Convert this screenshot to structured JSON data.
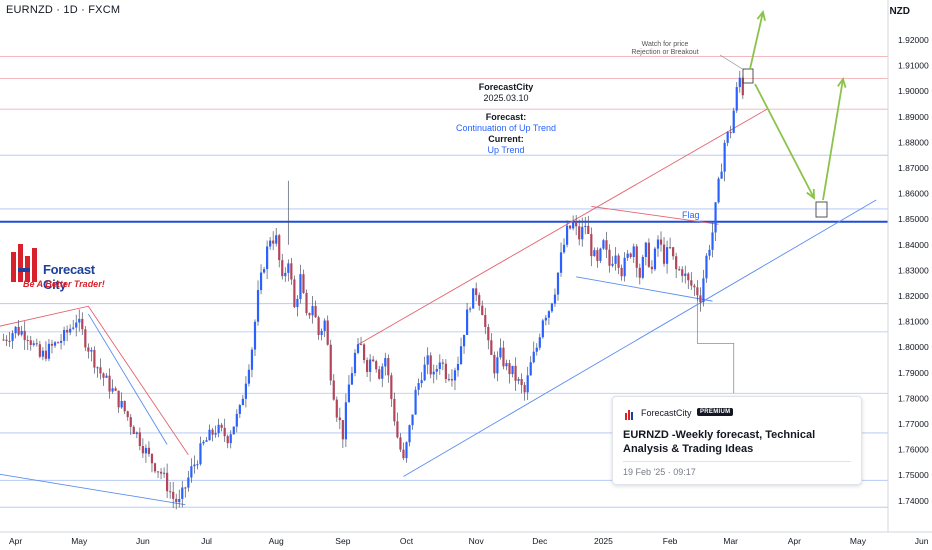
{
  "header": {
    "symbol": "EURNZD · 1D · FXCM",
    "currency": "NZD"
  },
  "annotations": {
    "watch_line1": "Watch for price",
    "watch_line2": "Rejection or Breakout",
    "fc_name": "ForecastCity",
    "fc_date": "2025.03.10",
    "forecast_label": "Forecast:",
    "forecast_value": "Continuation of Up Trend",
    "current_label": "Current:",
    "current_value": "Up Trend",
    "flag": "Flag"
  },
  "logo": {
    "name": "Forecast City",
    "tagline": "Be A Better Trader!"
  },
  "card": {
    "author": "ForecastCity",
    "badge": "PREMIUM",
    "title": "EURNZD -Weekly forecast, Technical Analysis & Trading Ideas",
    "date": "19 Feb '25 · 09:17"
  },
  "colors": {
    "up": "#2962ff",
    "down": "#b2455a",
    "support": "#1e4fd8",
    "trend_red": "#e5646f",
    "trend_blue": "#5b8def",
    "arrow": "#8bc34a"
  },
  "chart_data": {
    "type": "candlestick",
    "y_axis": {
      "min": 1.735,
      "max": 1.93,
      "ticks": [
        "1.92000",
        "1.91000",
        "1.90000",
        "1.89000",
        "1.88000",
        "1.87000",
        "1.86000",
        "1.85000",
        "1.84000",
        "1.83000",
        "1.82000",
        "1.81000",
        "1.80000",
        "1.79000",
        "1.78000",
        "1.77000",
        "1.76000",
        "1.75000",
        "1.74000"
      ]
    },
    "x_axis": {
      "labels": [
        {
          "text": "Apr",
          "i": 4
        },
        {
          "text": "May",
          "i": 25
        },
        {
          "text": "Jun",
          "i": 46
        },
        {
          "text": "Jul",
          "i": 67
        },
        {
          "text": "Aug",
          "i": 90
        },
        {
          "text": "Sep",
          "i": 112
        },
        {
          "text": "Oct",
          "i": 133
        },
        {
          "text": "Nov",
          "i": 156
        },
        {
          "text": "Dec",
          "i": 177
        },
        {
          "text": "2025",
          "i": 198
        },
        {
          "text": "Feb",
          "i": 220
        },
        {
          "text": "Mar",
          "i": 240
        },
        {
          "text": "Apr",
          "i": 261
        },
        {
          "text": "May",
          "i": 282
        },
        {
          "text": "Jun",
          "i": 303
        }
      ]
    },
    "candles_total": 245,
    "close_anchors": [
      [
        0,
        1.803
      ],
      [
        4,
        1.807
      ],
      [
        8,
        1.805
      ],
      [
        12,
        1.796
      ],
      [
        16,
        1.8
      ],
      [
        20,
        1.804
      ],
      [
        24,
        1.811
      ],
      [
        28,
        1.8
      ],
      [
        32,
        1.79
      ],
      [
        36,
        1.783
      ],
      [
        40,
        1.775
      ],
      [
        44,
        1.766
      ],
      [
        48,
        1.757
      ],
      [
        52,
        1.751
      ],
      [
        56,
        1.741
      ],
      [
        58,
        1.739
      ],
      [
        62,
        1.752
      ],
      [
        66,
        1.762
      ],
      [
        70,
        1.768
      ],
      [
        74,
        1.765
      ],
      [
        78,
        1.775
      ],
      [
        80,
        1.788
      ],
      [
        82,
        1.8
      ],
      [
        84,
        1.82
      ],
      [
        86,
        1.833
      ],
      [
        88,
        1.843
      ],
      [
        90,
        1.842
      ],
      [
        92,
        1.825
      ],
      [
        94,
        1.835
      ],
      [
        96,
        1.815
      ],
      [
        98,
        1.827
      ],
      [
        100,
        1.811
      ],
      [
        102,
        1.817
      ],
      [
        104,
        1.805
      ],
      [
        106,
        1.81
      ],
      [
        108,
        1.79
      ],
      [
        110,
        1.775
      ],
      [
        112,
        1.766
      ],
      [
        114,
        1.785
      ],
      [
        116,
        1.797
      ],
      [
        118,
        1.8
      ],
      [
        120,
        1.793
      ],
      [
        122,
        1.797
      ],
      [
        124,
        1.79
      ],
      [
        126,
        1.796
      ],
      [
        128,
        1.78
      ],
      [
        130,
        1.765
      ],
      [
        132,
        1.755
      ],
      [
        134,
        1.768
      ],
      [
        136,
        1.782
      ],
      [
        138,
        1.79
      ],
      [
        140,
        1.794
      ],
      [
        142,
        1.788
      ],
      [
        144,
        1.796
      ],
      [
        146,
        1.79
      ],
      [
        148,
        1.79
      ],
      [
        150,
        1.795
      ],
      [
        152,
        1.807
      ],
      [
        154,
        1.818
      ],
      [
        156,
        1.822
      ],
      [
        158,
        1.815
      ],
      [
        160,
        1.8
      ],
      [
        162,
        1.792
      ],
      [
        164,
        1.797
      ],
      [
        166,
        1.792
      ],
      [
        168,
        1.79
      ],
      [
        170,
        1.786
      ],
      [
        172,
        1.782
      ],
      [
        174,
        1.793
      ],
      [
        176,
        1.8
      ],
      [
        178,
        1.812
      ],
      [
        180,
        1.815
      ],
      [
        182,
        1.823
      ],
      [
        184,
        1.835
      ],
      [
        186,
        1.845
      ],
      [
        188,
        1.848
      ],
      [
        190,
        1.843
      ],
      [
        192,
        1.848
      ],
      [
        194,
        1.838
      ],
      [
        196,
        1.832
      ],
      [
        198,
        1.84
      ],
      [
        200,
        1.832
      ],
      [
        202,
        1.838
      ],
      [
        204,
        1.83
      ],
      [
        206,
        1.835
      ],
      [
        208,
        1.84
      ],
      [
        210,
        1.828
      ],
      [
        212,
        1.838
      ],
      [
        214,
        1.83
      ],
      [
        216,
        1.842
      ],
      [
        218,
        1.835
      ],
      [
        220,
        1.838
      ],
      [
        222,
        1.83
      ],
      [
        224,
        1.83
      ],
      [
        226,
        1.825
      ],
      [
        228,
        1.823
      ],
      [
        230,
        1.82
      ],
      [
        232,
        1.835
      ],
      [
        234,
        1.845
      ],
      [
        236,
        1.863
      ],
      [
        238,
        1.88
      ],
      [
        240,
        1.885
      ],
      [
        242,
        1.9
      ],
      [
        243,
        1.905
      ],
      [
        244,
        1.9
      ]
    ],
    "horizontal_levels": [
      {
        "price": 1.9135,
        "style": "thin-red"
      },
      {
        "price": 1.905,
        "style": "thin-red"
      },
      {
        "price": 1.893,
        "style": "thin-red"
      },
      {
        "price": 1.875,
        "style": "thin-blue"
      },
      {
        "price": 1.854,
        "style": "thin-blue"
      },
      {
        "price": 1.849,
        "style": "support"
      },
      {
        "price": 1.817,
        "style": "thin-blue"
      },
      {
        "price": 1.806,
        "style": "thin-blue"
      },
      {
        "price": 1.782,
        "style": "thin-blue"
      },
      {
        "price": 1.7665,
        "style": "thin-blue"
      },
      {
        "price": 1.748,
        "style": "thin-blue"
      },
      {
        "price": 1.7375,
        "style": "thin-blue"
      }
    ]
  }
}
